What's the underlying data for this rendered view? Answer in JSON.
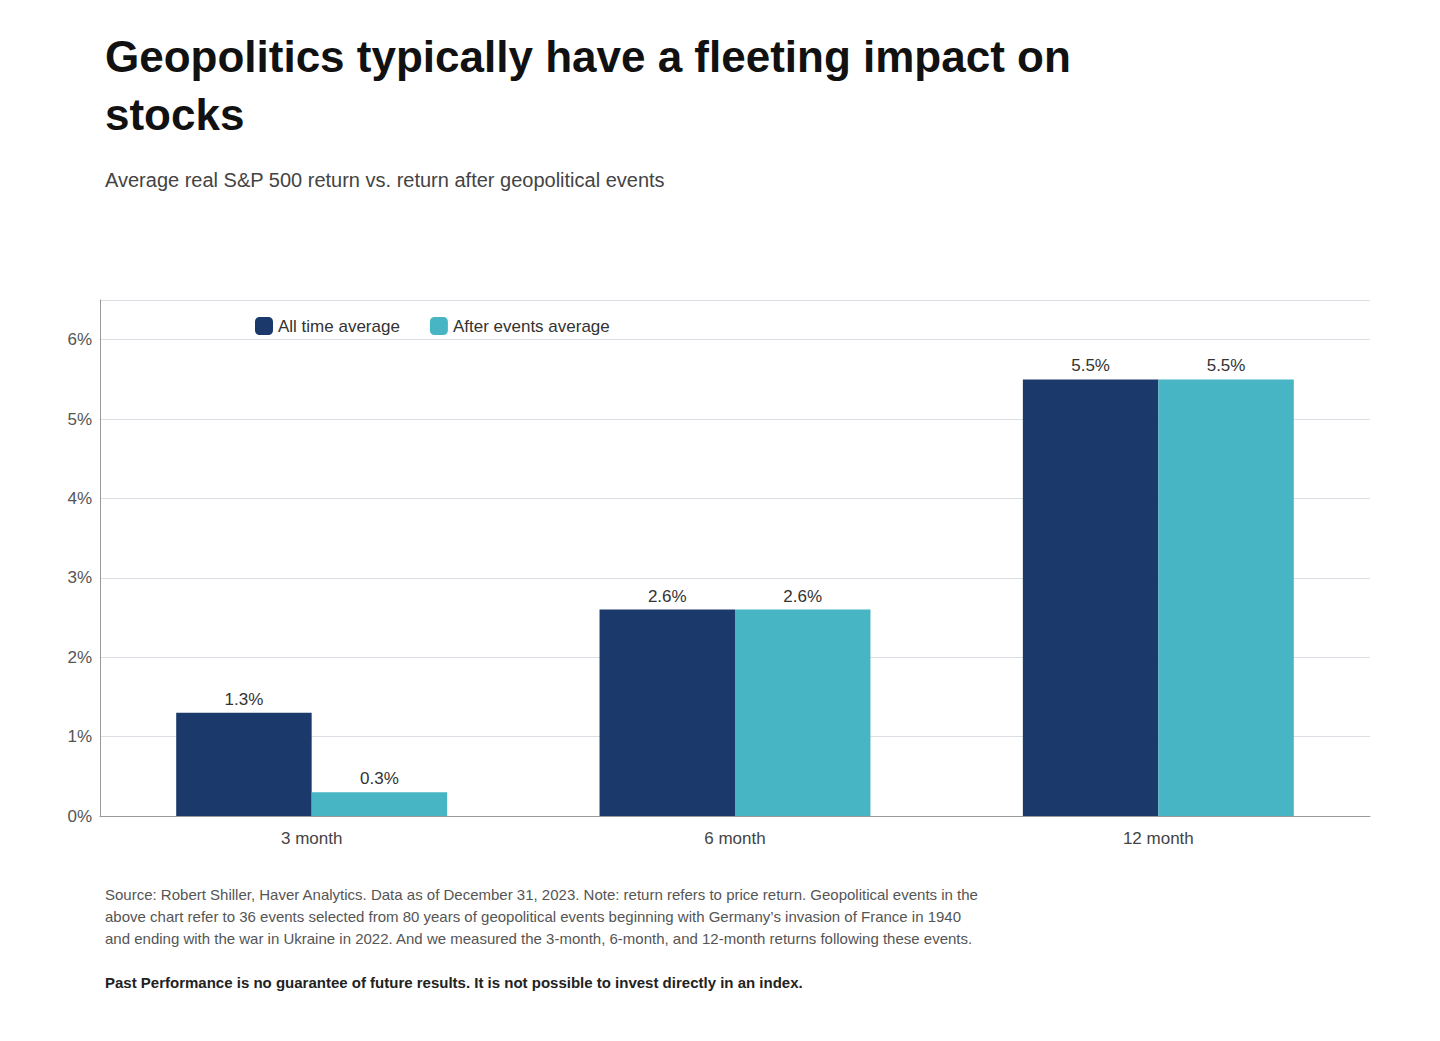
{
  "chart_data": {
    "type": "bar",
    "title": "Geopolitics typically have a fleeting impact on\nstocks",
    "subtitle": "Average real S&P 500 return vs. return after geopolitical events",
    "annotations": [
      "Source: Robert Shiller, Haver Analytics. Data as of December 31, 2023. Note: return refers to price return. Geopolitical events in the\nabove chart refer to 36 events selected from 80 years of geopolitical events beginning with Germany’s invasion of France in 1940\nand ending with the war in Ukraine in 2022. And we measured the 3-month, 6-month, and 12-month returns following these events.",
      "Past Performance is no guarantee of future results. It is not possible to invest directly in an index."
    ],
    "categories": [
      "3 month",
      "6 month",
      "12 month"
    ],
    "series": [
      {
        "name": "All time average",
        "color": "#1b3a6b",
        "values": [
          1.3,
          2.6,
          5.5
        ],
        "value_labels": [
          "1.3%",
          "2.6%",
          "5.5%"
        ]
      },
      {
        "name": "After events average",
        "color": "#47b5c4",
        "values": [
          0.3,
          2.6,
          5.5
        ],
        "value_labels": [
          "0.3%",
          "2.6%",
          "5.5%"
        ]
      }
    ],
    "ylim": [
      0,
      6.5
    ],
    "yticks": [
      {
        "value": 0,
        "label": "0%"
      },
      {
        "value": 1,
        "label": "1%"
      },
      {
        "value": 2,
        "label": "2%"
      },
      {
        "value": 3,
        "label": "3%"
      },
      {
        "value": 4,
        "label": "4%"
      },
      {
        "value": 5,
        "label": "5%"
      },
      {
        "value": 6,
        "label": "6%"
      }
    ],
    "grid": true,
    "legend": "upper left",
    "data_labels": true
  }
}
